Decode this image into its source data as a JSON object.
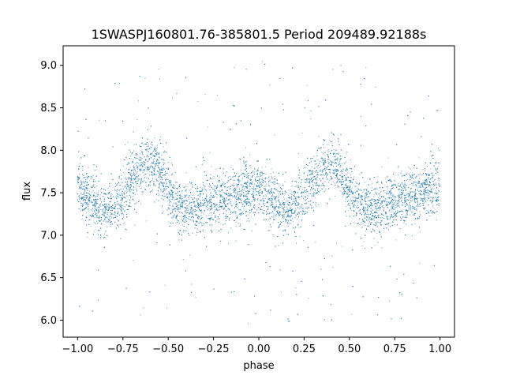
{
  "chart_data": {
    "type": "scatter",
    "title": "1SWASPJ160801.76-385801.5 Period 209489.92188s",
    "xlabel": "phase",
    "ylabel": "flux",
    "xlim": [
      -1.08,
      1.08
    ],
    "ylim": [
      5.8,
      9.23
    ],
    "xticks": [
      -1.0,
      -0.75,
      -0.5,
      -0.25,
      0.0,
      0.25,
      0.5,
      0.75,
      1.0
    ],
    "xtick_labels": [
      "−1.00",
      "−0.75",
      "−0.50",
      "−0.25",
      "0.00",
      "0.25",
      "0.50",
      "0.75",
      "1.00"
    ],
    "yticks": [
      6.0,
      6.5,
      7.0,
      7.5,
      8.0,
      8.5,
      9.0
    ],
    "ytick_labels": [
      "6.0",
      "6.5",
      "7.0",
      "7.5",
      "8.0",
      "8.5",
      "9.0"
    ],
    "grid": false,
    "marker_color": "#1f77b4",
    "series": [
      {
        "x_range": [
          -1.0,
          1.0
        ],
        "profile_phase": [
          0.0,
          0.05,
          0.1,
          0.15,
          0.2,
          0.25,
          0.3,
          0.35,
          0.4,
          0.45,
          0.5,
          0.55,
          0.6,
          0.65,
          0.7,
          0.75,
          0.8,
          0.85,
          0.9,
          0.95,
          1.0
        ],
        "profile_flux": [
          7.55,
          7.45,
          7.35,
          7.3,
          7.35,
          7.45,
          7.65,
          7.8,
          7.85,
          7.75,
          7.5,
          7.35,
          7.3,
          7.3,
          7.35,
          7.4,
          7.42,
          7.45,
          7.5,
          7.55,
          7.55
        ],
        "scatter": 0.16,
        "outlier_range": [
          5.95,
          9.05
        ]
      }
    ]
  }
}
